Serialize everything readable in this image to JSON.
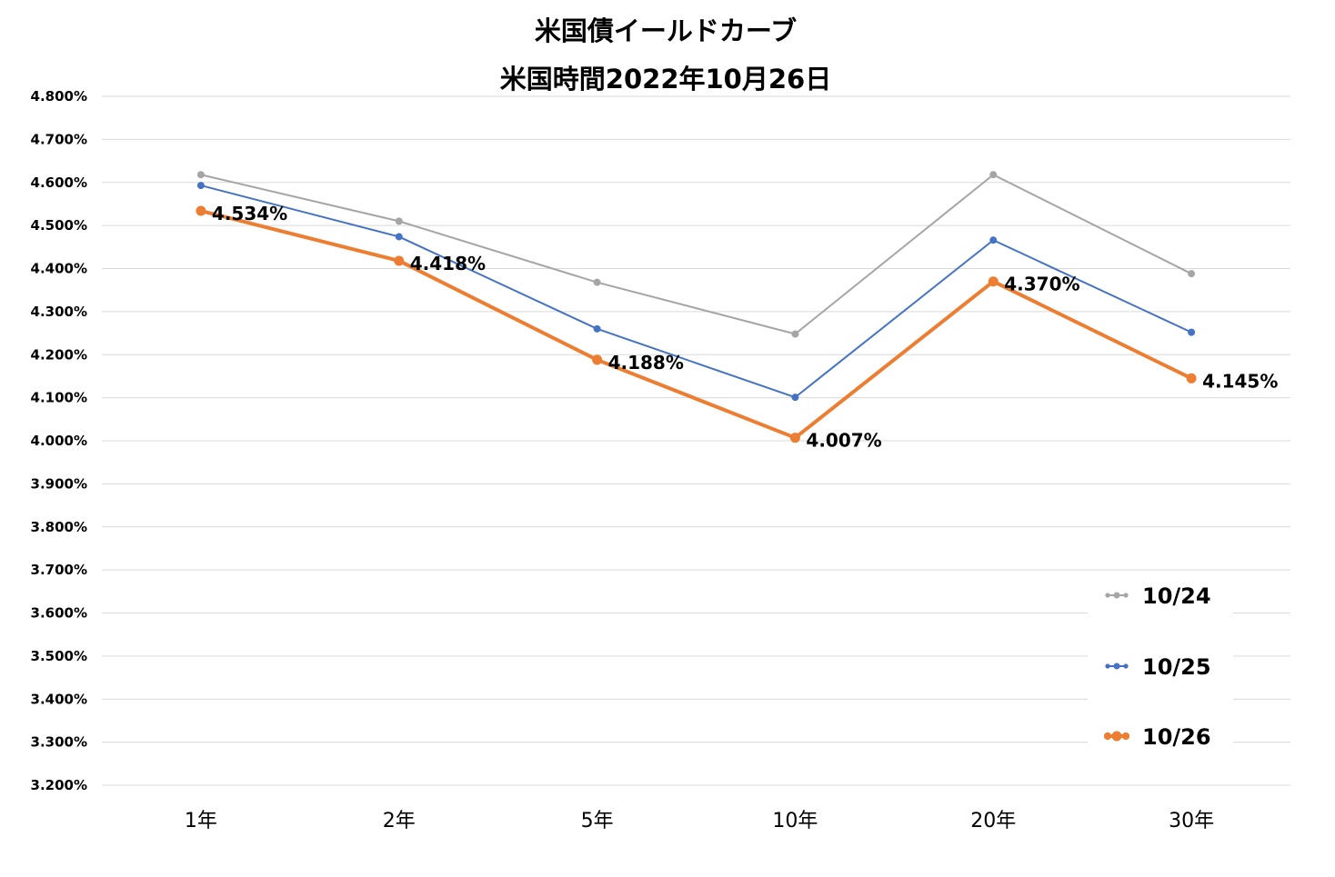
{
  "chart_data": {
    "type": "line",
    "title": "米国債イールドカーブ",
    "subtitle": "米国時間2022年10月26日",
    "categories": [
      "1年",
      "2年",
      "5年",
      "10年",
      "20年",
      "30年"
    ],
    "ylim": [
      3.2,
      4.8
    ],
    "ytick_step": 0.1,
    "ytick_labels": [
      "4.800%",
      "4.700%",
      "4.600%",
      "4.500%",
      "4.400%",
      "4.300%",
      "4.200%",
      "4.100%",
      "4.000%",
      "3.900%",
      "3.800%",
      "3.700%",
      "3.600%",
      "3.500%",
      "3.400%",
      "3.300%",
      "3.200%"
    ],
    "grid": true,
    "legend_position": "bottom-right",
    "series": [
      {
        "name": "10/24",
        "color": "#a5a5a5",
        "values": [
          4.618,
          4.51,
          4.368,
          4.248,
          4.618,
          4.388
        ]
      },
      {
        "name": "10/25",
        "color": "#4472c4",
        "values": [
          4.593,
          4.474,
          4.26,
          4.101,
          4.466,
          4.252
        ]
      },
      {
        "name": "10/26",
        "color": "#ed7d31",
        "values": [
          4.534,
          4.418,
          4.188,
          4.007,
          4.37,
          4.145
        ],
        "data_labels": [
          "4.534%",
          "4.418%",
          "4.188%",
          "4.007%",
          "4.370%",
          "4.145%"
        ]
      }
    ]
  }
}
